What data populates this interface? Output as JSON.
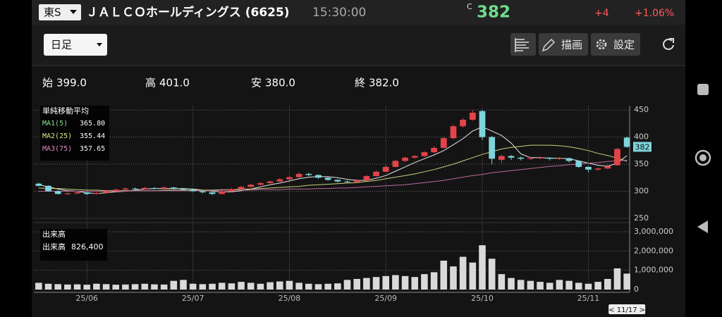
{
  "header": {
    "market": "東S",
    "name": "ＪＡＬＣＯホールディングス (6625)",
    "time": "15:30:00",
    "price_flag": "C",
    "price": "382",
    "change": "+4",
    "change_pct": "+1.06%"
  },
  "toolbar": {
    "period": "日足",
    "draw": "描画",
    "settings": "設定"
  },
  "chart_data": {
    "type": "candlestick",
    "ohlc": [
      {
        "name": "始",
        "value": 399,
        "label": "399.0"
      },
      {
        "name": "高",
        "value": 401,
        "label": "401.0"
      },
      {
        "name": "安",
        "value": 380,
        "label": "380.0"
      },
      {
        "name": "終",
        "value": 382,
        "label": "382.0"
      }
    ],
    "up_color": "#e4434a",
    "down_color": "#7fd4dc",
    "candles": [
      [
        314,
        316,
        309,
        310
      ],
      [
        310,
        311,
        299,
        300
      ],
      [
        300,
        302,
        294,
        295
      ],
      [
        295,
        298,
        293,
        296
      ],
      [
        296,
        300,
        295,
        298
      ],
      [
        298,
        299,
        293,
        295
      ],
      [
        295,
        298,
        294,
        297
      ],
      [
        297,
        302,
        296,
        300
      ],
      [
        300,
        305,
        299,
        303
      ],
      [
        303,
        307,
        302,
        305
      ],
      [
        305,
        307,
        302,
        304
      ],
      [
        304,
        308,
        303,
        306
      ],
      [
        306,
        307,
        303,
        305
      ],
      [
        305,
        309,
        304,
        307
      ],
      [
        307,
        308,
        303,
        305
      ],
      [
        305,
        306,
        301,
        303
      ],
      [
        303,
        304,
        299,
        300
      ],
      [
        300,
        301,
        296,
        298
      ],
      [
        298,
        299,
        293,
        295
      ],
      [
        295,
        301,
        294,
        300
      ],
      [
        300,
        306,
        299,
        304
      ],
      [
        304,
        310,
        303,
        308
      ],
      [
        308,
        314,
        307,
        312
      ],
      [
        312,
        317,
        311,
        315
      ],
      [
        315,
        320,
        314,
        318
      ],
      [
        318,
        324,
        317,
        322
      ],
      [
        322,
        328,
        321,
        326
      ],
      [
        326,
        335,
        325,
        332
      ],
      [
        332,
        334,
        328,
        330
      ],
      [
        330,
        331,
        323,
        325
      ],
      [
        325,
        326,
        319,
        321
      ],
      [
        321,
        322,
        316,
        318
      ],
      [
        318,
        320,
        315,
        317
      ],
      [
        317,
        322,
        316,
        320
      ],
      [
        320,
        330,
        319,
        328
      ],
      [
        328,
        338,
        327,
        336
      ],
      [
        336,
        348,
        335,
        345
      ],
      [
        345,
        358,
        344,
        356
      ],
      [
        356,
        364,
        354,
        362
      ],
      [
        362,
        367,
        360,
        365
      ],
      [
        365,
        374,
        363,
        372
      ],
      [
        372,
        383,
        370,
        380
      ],
      [
        380,
        400,
        379,
        398
      ],
      [
        398,
        423,
        396,
        420
      ],
      [
        420,
        435,
        418,
        432
      ],
      [
        432,
        450,
        430,
        445
      ],
      [
        448,
        450,
        395,
        400
      ],
      [
        400,
        402,
        350,
        360
      ],
      [
        358,
        368,
        352,
        365
      ],
      [
        365,
        367,
        358,
        362
      ],
      [
        362,
        364,
        357,
        360
      ],
      [
        360,
        363,
        358,
        361
      ],
      [
        361,
        364,
        359,
        362
      ],
      [
        362,
        363,
        357,
        360
      ],
      [
        360,
        363,
        358,
        361
      ],
      [
        361,
        362,
        353,
        356
      ],
      [
        356,
        357,
        343,
        345
      ],
      [
        345,
        346,
        335,
        340
      ],
      [
        340,
        344,
        338,
        342
      ],
      [
        342,
        349,
        341,
        346
      ],
      [
        348,
        380,
        347,
        378
      ],
      [
        399,
        401,
        380,
        382
      ]
    ],
    "ma_title": "単純移動平均",
    "series": [
      {
        "name": "MA1(5)",
        "color": "#e8e8e8",
        "legend_color": "#8fe08f",
        "current": {
          "value": 365.8,
          "label": "365.80"
        },
        "values": [
          312,
          308,
          304,
          301,
          300,
          297,
          296,
          297,
          299,
          300,
          302,
          304,
          305,
          305,
          305,
          305,
          304,
          302,
          300,
          299,
          299,
          301,
          304,
          308,
          312,
          315,
          319,
          323,
          326,
          327,
          327,
          325,
          322,
          320,
          320,
          324,
          329,
          337,
          345,
          353,
          360,
          367,
          375,
          386,
          397,
          411,
          419,
          411,
          403,
          389,
          369,
          362,
          362,
          361,
          361,
          360,
          356,
          352,
          348,
          346,
          352,
          365.8
        ]
      },
      {
        "name": "MA2(25)",
        "color": "#c9d27a",
        "legend_color": "#e2e28a",
        "current": {
          "value": 355.44,
          "label": "355.44"
        },
        "values": [
          306,
          305,
          305,
          304,
          303,
          302,
          302,
          301,
          301,
          301,
          301,
          301,
          301,
          302,
          302,
          302,
          302,
          302,
          302,
          303,
          303,
          304,
          304,
          305,
          306,
          307,
          308,
          309,
          311,
          312,
          313,
          314,
          315,
          316,
          318,
          320,
          323,
          326,
          329,
          332,
          336,
          340,
          345,
          350,
          356,
          362,
          368,
          373,
          378,
          381,
          383,
          385,
          385,
          385,
          384,
          382,
          379,
          375,
          370,
          366,
          361,
          355.44
        ]
      },
      {
        "name": "MA3(75)",
        "color": "#b96a9a",
        "legend_color": "#e08ac0",
        "current": {
          "value": 357.65,
          "label": "357.65"
        },
        "values": [
          300,
          300,
          300,
          300,
          300,
          300,
          300,
          300,
          300,
          300,
          301,
          301,
          301,
          301,
          301,
          301,
          301,
          301,
          301,
          302,
          302,
          302,
          302,
          303,
          303,
          303,
          304,
          304,
          304,
          305,
          305,
          306,
          306,
          307,
          308,
          309,
          310,
          311,
          312,
          314,
          316,
          318,
          320,
          323,
          326,
          329,
          331,
          334,
          336,
          338,
          340,
          342,
          344,
          346,
          347,
          349,
          350,
          352,
          353,
          355,
          356,
          357.65
        ]
      }
    ],
    "ylim": [
      246,
      458
    ],
    "yticks": [
      250,
      300,
      350,
      400,
      450
    ],
    "grid": true,
    "xticks": [
      {
        "value": 5,
        "label": "25/06"
      },
      {
        "value": 16,
        "label": "25/07"
      },
      {
        "value": 26,
        "label": "25/08"
      },
      {
        "value": 36,
        "label": "25/09"
      },
      {
        "value": 46,
        "label": "25/10"
      },
      {
        "value": 57,
        "label": "25/11"
      }
    ],
    "cursor_label": "< 11/17 >",
    "volume": {
      "type": "bar",
      "name": "出来高",
      "color": "#d9d9d9",
      "current": {
        "value": 826400,
        "label": "826,400"
      },
      "values": [
        350000,
        300000,
        280000,
        260000,
        270000,
        250000,
        300000,
        280000,
        250000,
        260000,
        280000,
        300000,
        270000,
        260000,
        450000,
        500000,
        300000,
        280000,
        300000,
        350000,
        320000,
        400000,
        350000,
        300000,
        380000,
        420000,
        450000,
        350000,
        300000,
        280000,
        300000,
        320000,
        500000,
        550000,
        600000,
        650000,
        700000,
        750000,
        700000,
        650000,
        800000,
        900000,
        1500000,
        1200000,
        1700000,
        1400000,
        2300000,
        1600000,
        800000,
        600000,
        500000,
        450000,
        400000,
        350000,
        500000,
        450000,
        350000,
        300000,
        400000,
        550000,
        1100000,
        826400
      ],
      "ylim": [
        0,
        3000000
      ],
      "yticks": [
        0,
        {
          "value": 1000000,
          "label": "1,000,000"
        },
        {
          "value": 2000000,
          "label": "2,000,000"
        },
        {
          "value": 3000000,
          "label": "3,000,000"
        }
      ]
    }
  }
}
